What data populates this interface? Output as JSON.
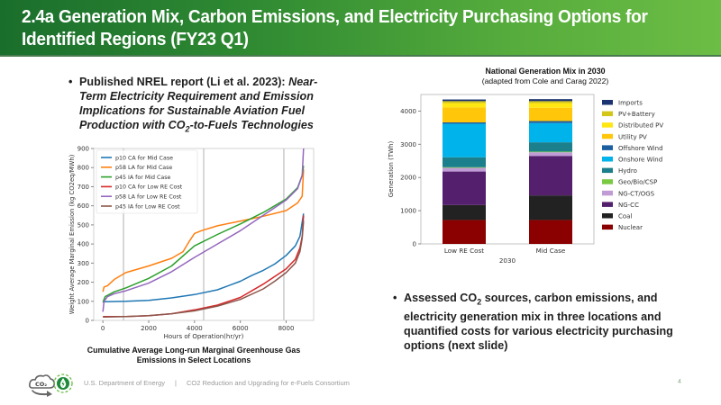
{
  "header": {
    "title": "2.4a  Generation Mix, Carbon Emissions, and Electricity Purchasing Options for Identified Regions (FY23 Q1)"
  },
  "bullets": [
    {
      "prefix": "Published NREL report (Li et al. 2023): ",
      "italic_1": "Near-Term Electricity Requirement and Emission Implications for Sustainable Aviation Fuel Production with CO",
      "sub": "2",
      "italic_2": "-to-Fuels Technologies"
    },
    {
      "text_1": "Assessed CO",
      "sub": "2",
      "text_2": " sources, carbon emissions, and electricity generation mix in three locations and quantified costs for various electricity purchasing options (next slide)"
    }
  ],
  "captions": {
    "line_chart": "Cumulative Average Long-run Marginal Greenhouse Gas Emissions in Select Locations",
    "bar_chart_title": "National Generation Mix in 2030",
    "bar_chart_subtitle": "(adapted from Cole and Carag 2022)"
  },
  "footer": {
    "org": "U.S. Department of Energy",
    "separator": "|",
    "consortium": "CO2 Reduction and Upgrading for e-Fuels Consortium",
    "page": "4",
    "logo_text": "CO₂"
  },
  "chart_data": [
    {
      "type": "line",
      "title": "",
      "xlabel": "Hours of Operation(hr/yr)",
      "ylabel": "Weight Average Marginal Emission (kg CO2eq/MWh)",
      "xlim": [
        -400,
        9200
      ],
      "ylim": [
        0,
        900
      ],
      "xticks": [
        0,
        2000,
        4000,
        6000,
        8000
      ],
      "yticks": [
        0,
        100,
        200,
        300,
        400,
        500,
        600,
        700,
        800,
        900
      ],
      "vlines": [
        900,
        4400,
        7900
      ],
      "legend_position": "top-left",
      "series": [
        {
          "name": "p10 CA for Mid Case",
          "color": "#1f77b4",
          "x": [
            0,
            100,
            1000,
            2000,
            3000,
            4000,
            5000,
            6000,
            6500,
            7000,
            7500,
            8000,
            8400,
            8600,
            8760
          ],
          "y": [
            95,
            98,
            100,
            105,
            118,
            135,
            160,
            205,
            235,
            262,
            295,
            340,
            390,
            440,
            560
          ]
        },
        {
          "name": "p58 LA for Mid Case",
          "color": "#ff7f0e",
          "x": [
            0,
            50,
            200,
            500,
            1000,
            2000,
            3000,
            3500,
            3800,
            4000,
            4300,
            5000,
            6000,
            7000,
            8000,
            8500,
            8700,
            8760
          ],
          "y": [
            150,
            175,
            182,
            215,
            250,
            285,
            325,
            360,
            420,
            455,
            470,
            495,
            520,
            545,
            575,
            615,
            650,
            790
          ]
        },
        {
          "name": "p45 IA for Mid Case",
          "color": "#2ca02c",
          "x": [
            0,
            100,
            500,
            1000,
            2000,
            3000,
            4000,
            5000,
            6000,
            7000,
            8000,
            8500,
            8700,
            8760
          ],
          "y": [
            95,
            125,
            150,
            170,
            220,
            285,
            390,
            450,
            505,
            565,
            635,
            695,
            760,
            810
          ]
        },
        {
          "name": "p10 CA for Low RE Cost",
          "color": "#d62728",
          "x": [
            0,
            1000,
            2000,
            3000,
            4000,
            5000,
            6000,
            7000,
            7500,
            8000,
            8400,
            8600,
            8700,
            8760
          ],
          "y": [
            20,
            20,
            25,
            35,
            55,
            80,
            120,
            190,
            230,
            270,
            320,
            380,
            440,
            550
          ]
        },
        {
          "name": "p58 LA for Low RE Cost",
          "color": "#9467bd",
          "x": [
            0,
            50,
            200,
            500,
            1000,
            2000,
            3000,
            4000,
            5000,
            6000,
            7000,
            8000,
            8500,
            8700,
            8760
          ],
          "y": [
            45,
            100,
            125,
            140,
            155,
            195,
            255,
            330,
            400,
            470,
            550,
            630,
            690,
            760,
            900
          ]
        },
        {
          "name": "p45 IA for Low RE Cost",
          "color": "#8c564b",
          "x": [
            0,
            1000,
            2000,
            3000,
            4000,
            5000,
            6000,
            7000,
            7500,
            8000,
            8400,
            8600,
            8700,
            8760
          ],
          "y": [
            18,
            20,
            25,
            35,
            50,
            75,
            110,
            165,
            205,
            250,
            300,
            360,
            430,
            520
          ]
        }
      ]
    },
    {
      "type": "bar",
      "stacked": true,
      "title": "National Generation Mix in 2030",
      "subtitle": "(adapted from Cole and Carag 2022)",
      "xlabel": "2030",
      "ylabel": "Generation (TWh)",
      "ylim": [
        0,
        4500
      ],
      "yticks": [
        0,
        1000,
        2000,
        3000,
        4000
      ],
      "categories": [
        "Low RE Cost",
        "Mid Case"
      ],
      "legend_position": "right",
      "series": [
        {
          "name": "Nuclear",
          "color": "#8b0000",
          "values": [
            720,
            720
          ]
        },
        {
          "name": "Coal",
          "color": "#222222",
          "values": [
            450,
            740
          ]
        },
        {
          "name": "NG-CC",
          "color": "#541f6c",
          "values": [
            1010,
            1190
          ]
        },
        {
          "name": "NG-CT/OGS",
          "color": "#c09bd6",
          "values": [
            110,
            110
          ]
        },
        {
          "name": "Geo/Bio/CSP",
          "color": "#7ac943",
          "values": [
            20,
            20
          ]
        },
        {
          "name": "Hydro",
          "color": "#1b7f8c",
          "values": [
            300,
            280
          ]
        },
        {
          "name": "Onshore Wind",
          "color": "#00b3eb",
          "values": [
            1010,
            580
          ]
        },
        {
          "name": "Offshore Wind",
          "color": "#1b5fa0",
          "values": [
            40,
            60
          ]
        },
        {
          "name": "Utility PV",
          "color": "#ffc60a",
          "values": [
            450,
            400
          ]
        },
        {
          "name": "Distributed PV",
          "color": "#ffe712",
          "values": [
            130,
            140
          ]
        },
        {
          "name": "PV+Battery",
          "color": "#d4c617",
          "values": [
            60,
            60
          ]
        },
        {
          "name": "Imports",
          "color": "#1b3370",
          "values": [
            50,
            60
          ]
        }
      ]
    }
  ]
}
